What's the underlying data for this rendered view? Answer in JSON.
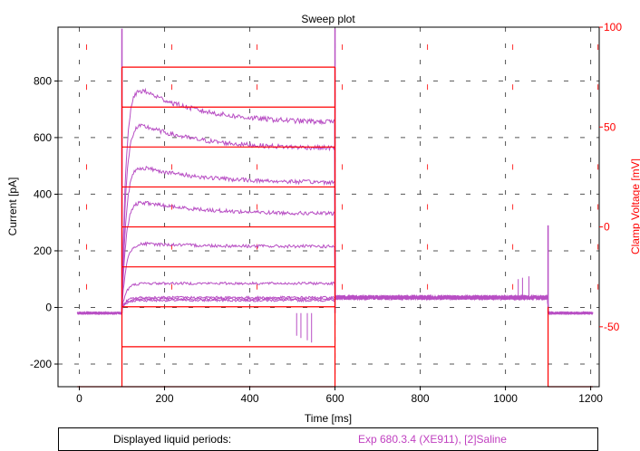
{
  "chart_data": {
    "type": "line",
    "title": "Sweep plot",
    "xlabel": "Time [ms]",
    "ylabel": "Current [pA]",
    "y2label": "Clamp Voltage [mV]",
    "xlim": [
      -50,
      1220
    ],
    "ylim": [
      -280,
      990
    ],
    "y2lim": [
      -80,
      100
    ],
    "xticks": [
      0,
      200,
      400,
      600,
      800,
      1000,
      1200
    ],
    "yticks": [
      -200,
      0,
      200,
      400,
      600,
      800
    ],
    "y2ticks": [
      -50,
      0,
      50,
      100
    ],
    "grid": true,
    "current_traces": [
      {
        "steady": 25,
        "peak": 25
      },
      {
        "steady": 30,
        "peak": 30
      },
      {
        "steady": 35,
        "peak": 35
      },
      {
        "steady": 85,
        "peak": 85
      },
      {
        "steady": 215,
        "peak": 230
      },
      {
        "steady": 330,
        "peak": 390
      },
      {
        "steady": 440,
        "peak": 520
      },
      {
        "steady": 560,
        "peak": 680
      },
      {
        "steady": 650,
        "peak": 820
      }
    ],
    "voltage_steps": [
      -80,
      -60,
      -40,
      -20,
      0,
      20,
      40,
      60,
      80
    ],
    "holding_voltage": -80,
    "trace_baseline": -20,
    "tail_current": 35,
    "pulse_start": 100,
    "pulse_end": 600,
    "sweep_end": 1100,
    "series_colors": {
      "current": "#b84fc4",
      "voltage": "#ff0000"
    }
  },
  "legend": {
    "label": "Displayed liquid periods:",
    "value": "Exp 680.3.4 (XE911), [2]Saline",
    "value_color": "#c040c0"
  }
}
